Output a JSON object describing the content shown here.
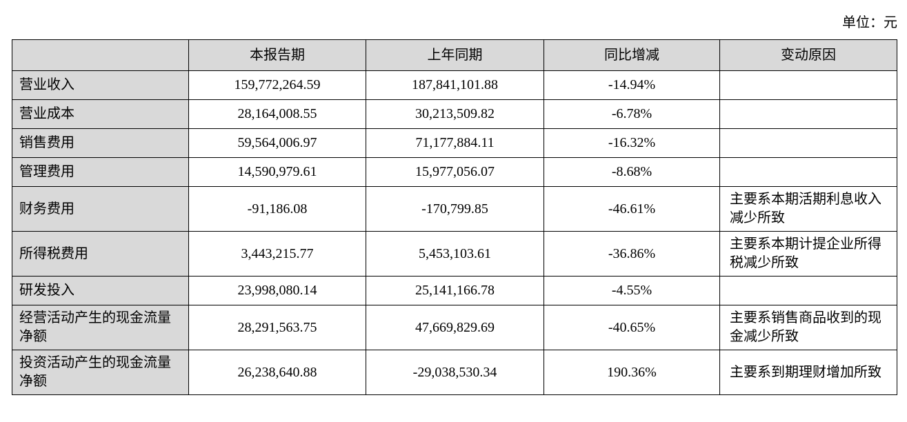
{
  "unit": "单位：元",
  "table": {
    "header": [
      "",
      "本报告期",
      "上年同期",
      "同比增减",
      "变动原因"
    ],
    "rows": [
      [
        "营业收入",
        "159,772,264.59",
        "187,841,101.88",
        "-14.94%"
      ],
      [
        "营业成本",
        "28,164,008.55",
        "30,213,509.82",
        "-6.78%"
      ],
      [
        "销售费用",
        "59,564,006.97",
        "71,177,884.11",
        "-16.32%"
      ],
      [
        "管理费用",
        "14,590,979.61",
        "15,977,056.07",
        "-8.68%"
      ],
      [
        "财务费用",
        "-91,186.08",
        "-170,799.85",
        "-46.61%",
        "主要系本期活期利息收入减少所致"
      ],
      [
        "所得税费用",
        "3,443,215.77",
        "5,453,103.61",
        "-36.86%",
        "主要系本期计提企业所得税减少所致"
      ],
      [
        "研发投入",
        "23,998,080.14",
        "25,141,166.78",
        "-4.55%"
      ],
      [
        "经营活动产生的现金流量净额",
        "28,291,563.75",
        "47,669,829.69",
        "-40.65%",
        "主要系销售商品收到的现金减少所致"
      ],
      [
        "投资活动产生的现金流量净额",
        "26,238,640.88",
        "-29,038,530.34",
        "190.36%",
        "主要系到期理财增加所致"
      ]
    ]
  }
}
